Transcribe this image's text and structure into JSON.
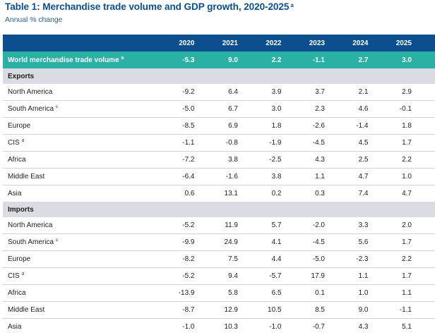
{
  "title": "Table 1: Merchandise trade volume and GDP growth, 2020-2025",
  "title_note": "a",
  "subtitle": "Annual % change",
  "columns": [
    "2020",
    "2021",
    "2022",
    "2023",
    "2024",
    "2025"
  ],
  "world": {
    "label": "World merchandise trade volume",
    "note": "b",
    "values": [
      "-5.3",
      "9.0",
      "2.2",
      "-1.1",
      "2.7",
      "3.0"
    ]
  },
  "exports": {
    "label": "Exports",
    "rows": [
      {
        "label": "North America",
        "note": "",
        "values": [
          "-9.2",
          "6.4",
          "3.9",
          "3.7",
          "2.1",
          "2.9"
        ]
      },
      {
        "label": "South America",
        "note": "c",
        "values": [
          "-5.0",
          "6.7",
          "3.0",
          "2.3",
          "4.6",
          "-0.1"
        ]
      },
      {
        "label": "Europe",
        "note": "",
        "values": [
          "-8.5",
          "6.9",
          "1.8",
          "-2.6",
          "-1.4",
          "1.8"
        ]
      },
      {
        "label": "CIS",
        "note": "d",
        "values": [
          "-1.1",
          "-0.8",
          "-1.9",
          "-4.5",
          "4.5",
          "1.7"
        ]
      },
      {
        "label": "Africa",
        "note": "",
        "values": [
          "-7.2",
          "3.8",
          "-2.5",
          "4.3",
          "2.5",
          "2.2"
        ]
      },
      {
        "label": "Middle East",
        "note": "",
        "values": [
          "-6.4",
          "-1.6",
          "3.8",
          "1.1",
          "4.7",
          "1.0"
        ]
      },
      {
        "label": "Asia",
        "note": "",
        "values": [
          "0.6",
          "13.1",
          "0.2",
          "0.3",
          "7.4",
          "4.7"
        ]
      }
    ]
  },
  "imports": {
    "label": "Imports",
    "rows": [
      {
        "label": "North America",
        "note": "",
        "values": [
          "-5.2",
          "11.9",
          "5.7",
          "-2.0",
          "3.3",
          "2.0"
        ]
      },
      {
        "label": "South America",
        "note": "c",
        "values": [
          "-9.9",
          "24.9",
          "4.1",
          "-4.5",
          "5.6",
          "1.7"
        ]
      },
      {
        "label": "Europe",
        "note": "",
        "values": [
          "-8.2",
          "7.5",
          "4.4",
          "-5.0",
          "-2.3",
          "2.2"
        ]
      },
      {
        "label": "CIS",
        "note": "d",
        "values": [
          "-5.2",
          "9.4",
          "-5.7",
          "17.9",
          "1.1",
          "1.7"
        ]
      },
      {
        "label": "Africa",
        "note": "",
        "values": [
          "-13.9",
          "5.8",
          "6.5",
          "0.1",
          "1.0",
          "1.1"
        ]
      },
      {
        "label": "Middle East",
        "note": "",
        "values": [
          "-8.7",
          "12.9",
          "10.5",
          "8.5",
          "9.0",
          "-1.1"
        ]
      },
      {
        "label": "Asia",
        "note": "",
        "values": [
          "-1.0",
          "10.3",
          "-1.0",
          "-0.7",
          "4.3",
          "5.1"
        ]
      }
    ]
  },
  "colors": {
    "header": "#0b4f8f",
    "world_row": "#2bb1a3",
    "section_row": "#d9dde3",
    "title": "#0b4f93"
  }
}
